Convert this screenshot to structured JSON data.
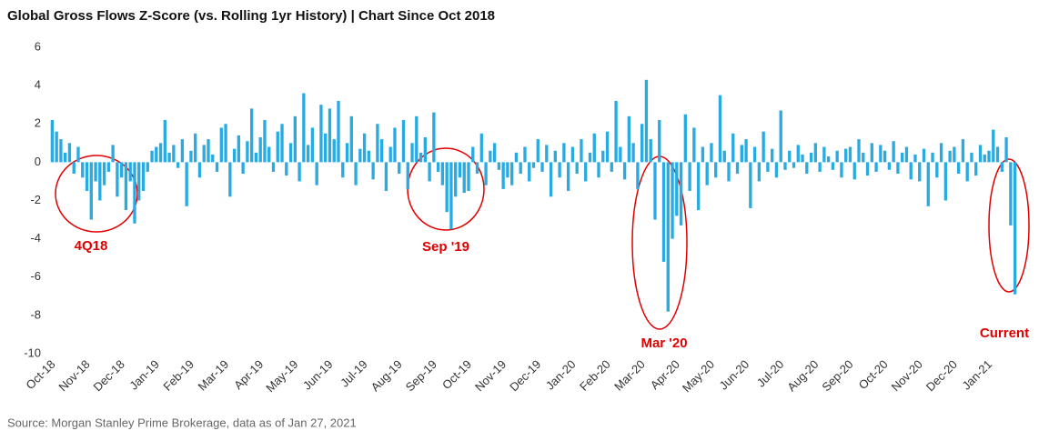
{
  "chart_data": {
    "type": "bar",
    "title": "Global Gross Flows Z-Score (vs. Rolling 1yr History)  |  Chart Since Oct 2018",
    "source": "Source: Morgan Stanley Prime Brokerage, data as of Jan 27, 2021",
    "annotations": [
      "4Q18",
      "Sep '19",
      "Mar '20",
      "Current"
    ],
    "color": "#29abe2",
    "ylim": [
      -10,
      6
    ],
    "yticks": [
      6,
      4,
      2,
      0,
      -2,
      -4,
      -6,
      -8,
      -10
    ],
    "categories": [
      "Oct-18",
      null,
      null,
      null,
      null,
      null,
      null,
      null,
      "Nov-18",
      null,
      null,
      null,
      null,
      null,
      null,
      null,
      "Dec-18",
      null,
      null,
      null,
      null,
      null,
      null,
      null,
      "Jan-19",
      null,
      null,
      null,
      null,
      null,
      null,
      null,
      "Feb-19",
      null,
      null,
      null,
      null,
      null,
      null,
      null,
      "Mar-19",
      null,
      null,
      null,
      null,
      null,
      null,
      null,
      "Apr-19",
      null,
      null,
      null,
      null,
      null,
      null,
      null,
      "May-19",
      null,
      null,
      null,
      null,
      null,
      null,
      null,
      "Jun-19",
      null,
      null,
      null,
      null,
      null,
      null,
      null,
      "Jul-19",
      null,
      null,
      null,
      null,
      null,
      null,
      null,
      "Aug-19",
      null,
      null,
      null,
      null,
      null,
      null,
      null,
      "Sep-19",
      null,
      null,
      null,
      null,
      null,
      null,
      null,
      "Oct-19",
      null,
      null,
      null,
      null,
      null,
      null,
      null,
      "Nov-19",
      null,
      null,
      null,
      null,
      null,
      null,
      null,
      "Dec-19",
      null,
      null,
      null,
      null,
      null,
      null,
      null,
      "Jan-20",
      null,
      null,
      null,
      null,
      null,
      null,
      null,
      "Feb-20",
      null,
      null,
      null,
      null,
      null,
      null,
      null,
      "Mar-20",
      null,
      null,
      null,
      null,
      null,
      null,
      null,
      "Apr-20",
      null,
      null,
      null,
      null,
      null,
      null,
      null,
      "May-20",
      null,
      null,
      null,
      null,
      null,
      null,
      null,
      "Jun-20",
      null,
      null,
      null,
      null,
      null,
      null,
      null,
      "Jul-20",
      null,
      null,
      null,
      null,
      null,
      null,
      null,
      "Aug-20",
      null,
      null,
      null,
      null,
      null,
      null,
      null,
      "Sep-20",
      null,
      null,
      null,
      null,
      null,
      null,
      null,
      "Oct-20",
      null,
      null,
      null,
      null,
      null,
      null,
      null,
      "Nov-20",
      null,
      null,
      null,
      null,
      null,
      null,
      null,
      "Dec-20",
      null,
      null,
      null,
      null,
      null,
      null,
      null,
      "Jan-21",
      null,
      null,
      null,
      null,
      null,
      null
    ],
    "values": [
      2.2,
      1.6,
      1.2,
      0.5,
      1.0,
      -0.6,
      0.8,
      -0.8,
      -1.5,
      -3.0,
      -1.0,
      -2.0,
      -1.2,
      -0.5,
      0.9,
      -1.8,
      -0.8,
      -2.5,
      -1.0,
      -3.2,
      -2.0,
      -1.5,
      -0.5,
      0.6,
      0.8,
      1.0,
      2.2,
      0.5,
      0.9,
      -0.3,
      1.2,
      -2.3,
      0.6,
      1.5,
      -0.8,
      0.9,
      1.2,
      0.4,
      -0.5,
      1.8,
      2.0,
      -1.8,
      0.7,
      1.4,
      -0.6,
      1.1,
      2.8,
      0.5,
      1.3,
      2.2,
      0.8,
      -0.5,
      1.6,
      2.0,
      -0.7,
      1.0,
      2.4,
      -1.0,
      3.6,
      0.9,
      1.8,
      -1.2,
      3.0,
      1.5,
      2.8,
      1.2,
      3.2,
      -0.8,
      1.0,
      2.4,
      -1.2,
      0.7,
      1.5,
      0.6,
      -0.9,
      2.0,
      1.2,
      -1.5,
      0.8,
      1.8,
      -0.6,
      2.2,
      -1.4,
      1.0,
      2.4,
      0.5,
      1.3,
      -1.0,
      2.6,
      -0.5,
      -1.2,
      -2.6,
      -3.5,
      -1.8,
      -0.8,
      -1.6,
      -1.5,
      0.8,
      -0.6,
      1.5,
      -1.2,
      0.6,
      1.0,
      -0.4,
      -1.4,
      -0.8,
      -1.2,
      0.5,
      -0.6,
      0.8,
      -1.0,
      -0.3,
      1.2,
      -0.5,
      0.9,
      -1.8,
      0.6,
      -0.8,
      1.0,
      -1.5,
      0.8,
      -0.6,
      1.2,
      -1.0,
      0.5,
      1.5,
      -0.8,
      0.6,
      1.6,
      -0.5,
      3.2,
      0.8,
      -0.9,
      2.4,
      1.0,
      -1.4,
      2.0,
      4.3,
      1.2,
      -3.0,
      2.2,
      -5.2,
      -7.8,
      -4.0,
      -2.8,
      -3.3,
      2.5,
      -1.5,
      1.8,
      -2.5,
      0.8,
      -1.2,
      1.0,
      -0.8,
      3.5,
      0.6,
      -1.0,
      1.5,
      -0.6,
      0.9,
      1.2,
      -2.4,
      0.8,
      -1.0,
      1.6,
      -0.5,
      0.7,
      -0.8,
      2.7,
      -0.4,
      0.6,
      -0.3,
      0.9,
      0.4,
      -0.6,
      0.5,
      1.0,
      -0.5,
      0.8,
      0.3,
      -0.4,
      0.6,
      -0.8,
      0.7,
      0.8,
      -0.9,
      1.2,
      0.5,
      -0.7,
      1.0,
      -0.5,
      0.9,
      0.6,
      -0.4,
      1.1,
      -0.6,
      0.5,
      0.8,
      -0.9,
      0.4,
      -1.0,
      0.7,
      -2.3,
      0.5,
      -0.8,
      1.0,
      -2.0,
      0.6,
      0.8,
      -0.6,
      1.2,
      -1.0,
      0.5,
      -0.7,
      0.9,
      0.4,
      0.6,
      1.7,
      0.8,
      -0.5,
      1.3,
      -3.3,
      -6.9
    ]
  }
}
